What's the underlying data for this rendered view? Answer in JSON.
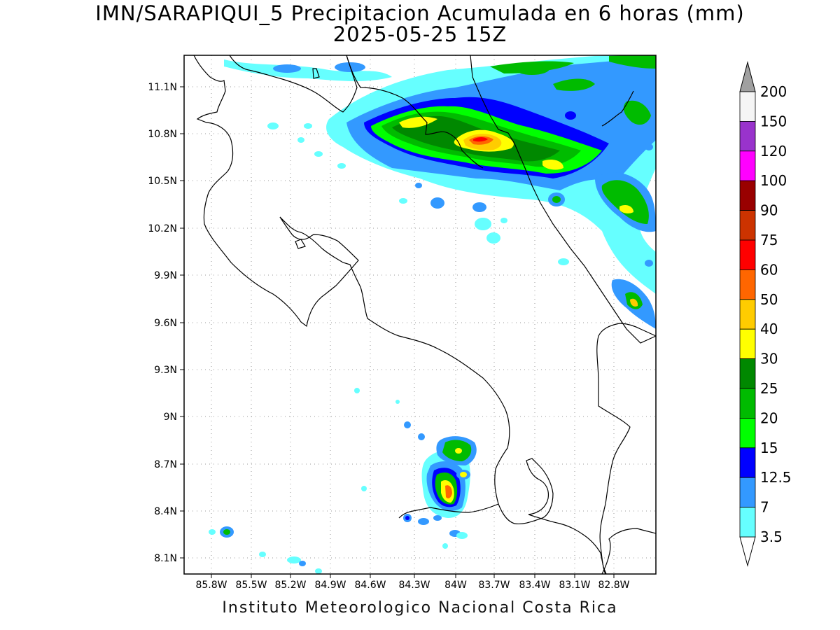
{
  "title": {
    "line1": "IMN/SARAPIQUI_5 Precipitacion Acumulada en 6 horas (mm)",
    "line2": "2025-05-25 15Z"
  },
  "footer": "Instituto Meteorologico Nacional Costa Rica",
  "map": {
    "lon_range": [
      -86.0,
      -83.0
    ],
    "lat_range": [
      8.0,
      11.3
    ],
    "lat_ticks": [
      "11.1N",
      "10.8N",
      "10.5N",
      "10.2N",
      "9.9N",
      "9.6N",
      "9.3N",
      "9N",
      "8.7N",
      "8.4N",
      "8.1N"
    ],
    "lon_ticks": [
      "85.8W",
      "85.5W",
      "85.2W",
      "84.9W",
      "84.6W",
      "84.3W",
      "84W",
      "83.7W",
      "83.4W",
      "83.1W",
      "82.8W"
    ],
    "grid": "dotted"
  },
  "colorbar": {
    "labels": [
      "200",
      "150",
      "120",
      "100",
      "90",
      "75",
      "60",
      "50",
      "40",
      "30",
      "25",
      "20",
      "15",
      "12.5",
      "7",
      "3.5"
    ],
    "colors": [
      "#f5f5f5",
      "#9933cc",
      "#ff00ff",
      "#990000",
      "#cc3300",
      "#ff0000",
      "#ff6600",
      "#ffcc00",
      "#ffff00",
      "#008800",
      "#00bb00",
      "#00ff00",
      "#0000ff",
      "#3399ff",
      "#66ffff"
    ],
    "top_arrow_color": "#a0a0a0",
    "bottom_arrow_color": "#ffffff"
  }
}
